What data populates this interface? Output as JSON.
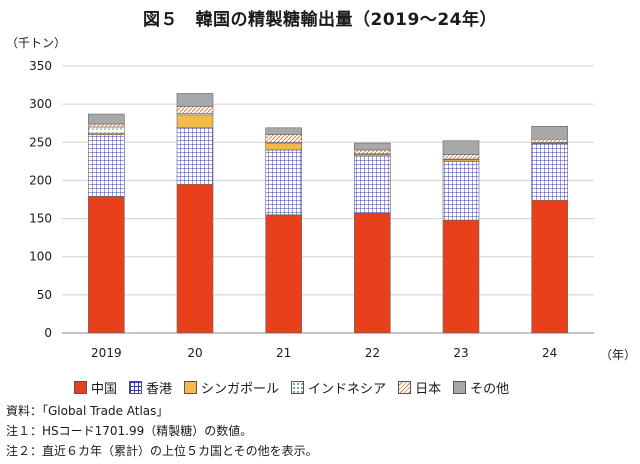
{
  "title": "図５　韓国の精製糖輸出量（2019～24年）",
  "y_unit_label": "（千トン）",
  "x_unit_label": "（年）",
  "notes": [
    "資料：「Global Trade Atlas」",
    "注１：HSコード1701.99（精製糖）の数値。",
    "注２：直近６カ年（累計）の上位５カ国とその他を表示。"
  ],
  "chart_data": {
    "type": "bar",
    "stacked": true,
    "categories": [
      "2019",
      "20",
      "21",
      "22",
      "23",
      "24"
    ],
    "ylim": [
      0,
      350
    ],
    "yticks": [
      0,
      50,
      100,
      150,
      200,
      250,
      300,
      350
    ],
    "grid": true,
    "legend_position": "bottom",
    "series": [
      {
        "name": "中国",
        "values": [
          179,
          195,
          155,
          157,
          148,
          174
        ],
        "color": "#e8401c",
        "pattern": "solid"
      },
      {
        "name": "香港",
        "values": [
          81,
          74,
          85,
          75,
          77,
          74
        ],
        "color": "#3a3fb0",
        "pattern": "grid"
      },
      {
        "name": "シンガポール",
        "values": [
          2,
          17,
          9,
          2,
          2,
          1
        ],
        "color": "#f5b94a",
        "pattern": "solid"
      },
      {
        "name": "インドネシア",
        "values": [
          8,
          2,
          1,
          1,
          1,
          1
        ],
        "color": "#7fb8b0",
        "pattern": "dots"
      },
      {
        "name": "日本",
        "values": [
          4,
          9,
          10,
          5,
          6,
          4
        ],
        "color": "#e8a070",
        "pattern": "hatch"
      },
      {
        "name": "その他",
        "values": [
          13,
          17,
          9,
          9,
          18,
          17
        ],
        "color": "#a8a8a8",
        "pattern": "solid"
      }
    ]
  }
}
